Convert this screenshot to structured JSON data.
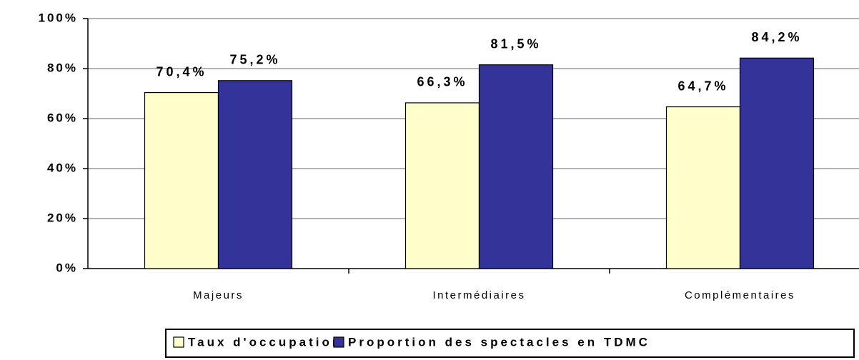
{
  "chart_data": {
    "type": "bar",
    "categories": [
      "Majeurs",
      "Intermédiaires",
      "Complémentaires"
    ],
    "series": [
      {
        "name": "Taux d'occupation",
        "color": "#ffffcc",
        "values": [
          70.4,
          66.3,
          64.7
        ],
        "value_labels": [
          "70,4%",
          "66,3%",
          "64,7%"
        ]
      },
      {
        "name": "Proportion des spectacles en TDMC",
        "color": "#333399",
        "values": [
          75.2,
          81.5,
          84.2
        ],
        "value_labels": [
          "75,2%",
          "81,5%",
          "84,2%"
        ]
      }
    ],
    "ylim": [
      0,
      100
    ],
    "yticks": [
      {
        "value": 0,
        "label": "0%"
      },
      {
        "value": 20,
        "label": "20%"
      },
      {
        "value": 40,
        "label": "40%"
      },
      {
        "value": 60,
        "label": "60%"
      },
      {
        "value": 80,
        "label": "80%"
      },
      {
        "value": 100,
        "label": "100%"
      }
    ],
    "grid": true,
    "legend": "bottom"
  }
}
